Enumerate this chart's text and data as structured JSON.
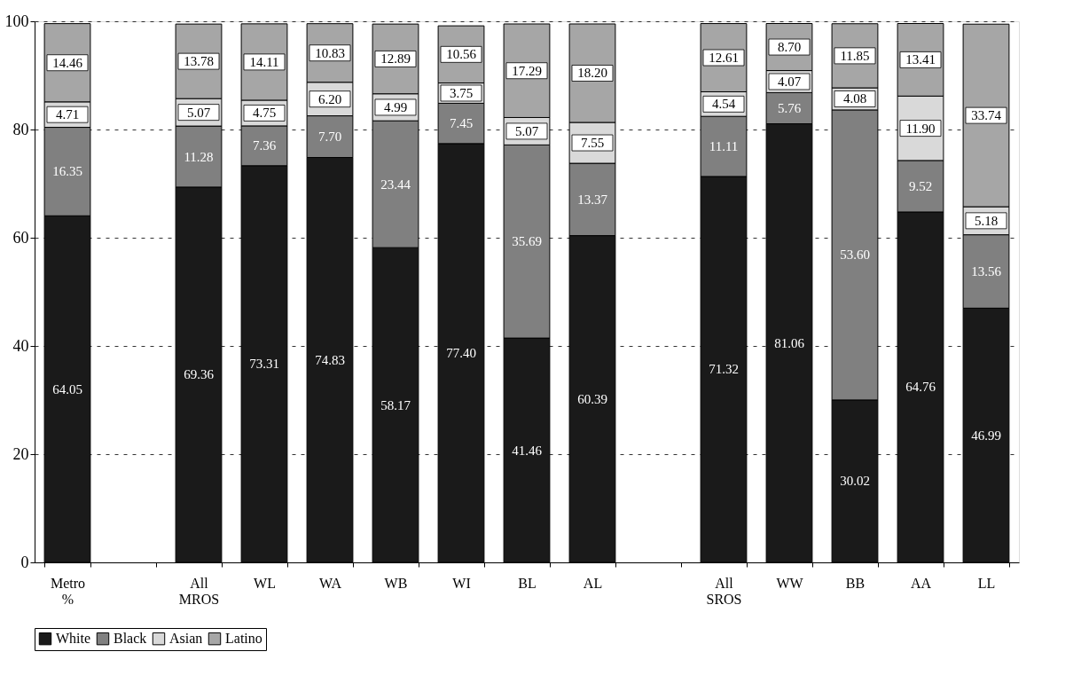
{
  "chart_data": {
    "type": "bar",
    "stacked": true,
    "grid": "y",
    "legend": "bottom",
    "categories": [
      "Metro %",
      null,
      "All MROS",
      "WL",
      "WA",
      "WB",
      "WI",
      "BL",
      "AL",
      null,
      "All SROS",
      "WW",
      "BB",
      "AA",
      "LL"
    ],
    "ylim": [
      0,
      100
    ],
    "yticks": [
      0,
      20,
      40,
      60,
      80,
      100
    ],
    "series": [
      {
        "name": "White",
        "color": "#1a1a1a",
        "values": [
          64.05,
          null,
          69.36,
          73.31,
          74.83,
          58.17,
          77.4,
          41.46,
          60.39,
          null,
          71.32,
          81.06,
          30.02,
          64.76,
          46.99
        ],
        "value_labels": [
          "64.05",
          null,
          "69.36",
          "73.31",
          "74.83",
          "58.17",
          "77.40",
          "41.46",
          "60.39",
          null,
          "71.32",
          "81.06",
          "30.02",
          "64.76",
          "46.99"
        ]
      },
      {
        "name": "Black",
        "color": "#808080",
        "values": [
          16.35,
          null,
          11.28,
          7.36,
          7.7,
          23.44,
          7.45,
          35.69,
          13.37,
          null,
          11.11,
          5.76,
          53.6,
          9.52,
          13.56
        ],
        "value_labels": [
          "16.35",
          null,
          "11.28",
          "7.36",
          "7.70",
          "23.44",
          "7.45",
          "35.69",
          "13.37",
          null,
          "11.11",
          "5.76",
          "53.60",
          "9.52",
          "13.56"
        ]
      },
      {
        "name": "Asian",
        "color": "#d9d9d9",
        "values": [
          4.71,
          null,
          5.07,
          4.75,
          6.2,
          4.99,
          3.75,
          5.07,
          7.55,
          null,
          4.54,
          4.07,
          4.08,
          11.9,
          5.18
        ],
        "value_labels": [
          "4.71",
          null,
          "5.07",
          "4.75",
          "6.20",
          "4.99",
          "3.75",
          "5.07",
          "7.55",
          null,
          "4.54",
          "4.07",
          "4.08",
          "11.90",
          "5.18"
        ]
      },
      {
        "name": "Latino",
        "color": "#a6a6a6",
        "values": [
          14.46,
          null,
          13.78,
          14.11,
          10.83,
          12.89,
          10.56,
          17.29,
          18.2,
          null,
          12.61,
          8.7,
          11.85,
          13.41,
          33.74
        ],
        "value_labels": [
          "14.46",
          null,
          "13.78",
          "14.11",
          "10.83",
          "12.89",
          "10.56",
          "17.29",
          "18.20",
          null,
          "12.61",
          "8.70",
          "11.85",
          "13.41",
          "33.74"
        ]
      }
    ]
  }
}
